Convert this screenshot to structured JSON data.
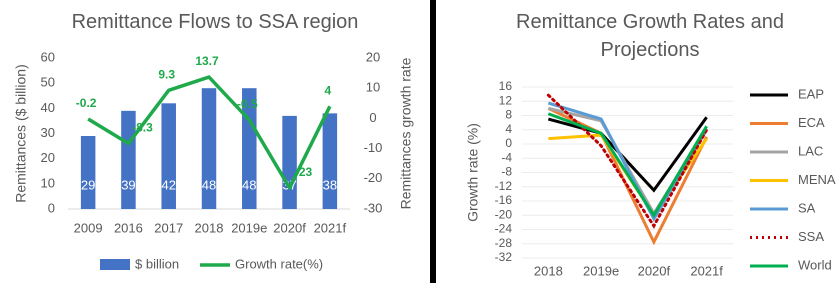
{
  "chart_data": [
    {
      "type": "combo",
      "title": "Remittance Flows to SSA region",
      "categories": [
        "2009",
        "2016",
        "2017",
        "2018",
        "2019e",
        "2020f",
        "2021f"
      ],
      "ylabel": "Remittances ($ billion)",
      "y2label": "Remittances growth rate",
      "ylim": [
        0,
        60
      ],
      "yticks": [
        0,
        10,
        20,
        30,
        40,
        50,
        60
      ],
      "y2lim": [
        -30,
        20
      ],
      "y2ticks": [
        -30,
        -20,
        -10,
        0,
        10,
        20
      ],
      "grid": false,
      "legend": "bottom",
      "series": [
        {
          "name": "$ billion",
          "kind": "bar",
          "color": "#4472c4",
          "values": [
            29,
            39,
            42,
            48,
            48,
            37,
            38
          ]
        },
        {
          "name": "Growth rate(%)",
          "kind": "line",
          "axis": "y2",
          "color": "#1eaa4b",
          "values": [
            -0.2,
            -8.3,
            9.3,
            13.7,
            -0.5,
            -23,
            4
          ]
        }
      ]
    },
    {
      "type": "line",
      "title": "Remittance Growth Rates and Projections",
      "categories": [
        "2018",
        "2019e",
        "2020f",
        "2021f"
      ],
      "ylabel": "Growth rate (%)",
      "ylim": [
        -32,
        16
      ],
      "yticks": [
        -32,
        -28,
        -24,
        -20,
        -16,
        -12,
        -8,
        -4,
        0,
        4,
        8,
        12,
        16
      ],
      "grid": true,
      "legend": "right",
      "series": [
        {
          "name": "EAP",
          "color": "#000000",
          "style": "solid",
          "values": [
            7,
            3,
            -13,
            7.5
          ]
        },
        {
          "name": "ECA",
          "color": "#ed7d31",
          "style": "solid",
          "values": [
            10,
            3,
            -27.5,
            2
          ]
        },
        {
          "name": "LAC",
          "color": "#a5a5a5",
          "style": "solid",
          "values": [
            10,
            6.5,
            -19.5,
            4
          ]
        },
        {
          "name": "MENA",
          "color": "#ffc000",
          "style": "solid",
          "values": [
            1.5,
            2.5,
            -20,
            1.5
          ]
        },
        {
          "name": "SA",
          "color": "#5b9bd5",
          "style": "solid",
          "values": [
            11.5,
            7,
            -21,
            4
          ]
        },
        {
          "name": "SSA",
          "color": "#c00000",
          "style": "dotted",
          "values": [
            13.7,
            -0.5,
            -23,
            4
          ]
        },
        {
          "name": "World",
          "color": "#00b050",
          "style": "solid",
          "values": [
            8.5,
            3,
            -20,
            5
          ]
        }
      ]
    }
  ]
}
